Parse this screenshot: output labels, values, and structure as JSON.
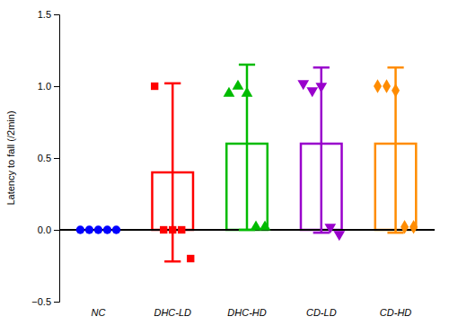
{
  "chart_data": {
    "type": "bar",
    "categories": [
      "NC",
      "DHC-LD",
      "DHC-HD",
      "CD-LD",
      "CD-HD"
    ],
    "values": [
      0.0,
      0.4,
      0.6,
      0.6,
      0.6
    ],
    "colors": [
      "#0000FF",
      "#FF0000",
      "#00BB00",
      "#9900CC",
      "#FF8C00"
    ],
    "error_upper": [
      0.0,
      1.02,
      1.15,
      1.13,
      1.13
    ],
    "error_lower": [
      0.0,
      -0.22,
      0.0,
      -0.02,
      -0.02
    ],
    "points": [
      {
        "category": "NC",
        "marker": "circle",
        "values": [
          0.0,
          0.0,
          0.0,
          0.0,
          0.0
        ]
      },
      {
        "category": "DHC-LD",
        "marker": "square",
        "values": [
          1.0,
          0.0,
          0.0,
          0.0,
          -0.2
        ]
      },
      {
        "category": "DHC-HD",
        "marker": "triangle-up",
        "values": [
          0.95,
          1.0,
          0.95,
          0.02,
          0.02
        ]
      },
      {
        "category": "CD-LD",
        "marker": "triangle-down",
        "values": [
          1.02,
          0.97,
          1.0,
          0.02,
          -0.03
        ]
      },
      {
        "category": "CD-HD",
        "marker": "diamond",
        "values": [
          1.0,
          1.0,
          0.97,
          0.02,
          0.02
        ]
      }
    ],
    "ylabel": "Latency to fall (/2min)",
    "ylim": [
      -0.5,
      1.5
    ],
    "yticks": [
      {
        "value": -0.5,
        "label": "−0.5"
      },
      {
        "value": 0.0,
        "label": "0.0"
      },
      0.5,
      {
        "value": 1.0,
        "label": "1.0"
      },
      {
        "value": 1.5,
        "label": "1.5"
      }
    ]
  }
}
